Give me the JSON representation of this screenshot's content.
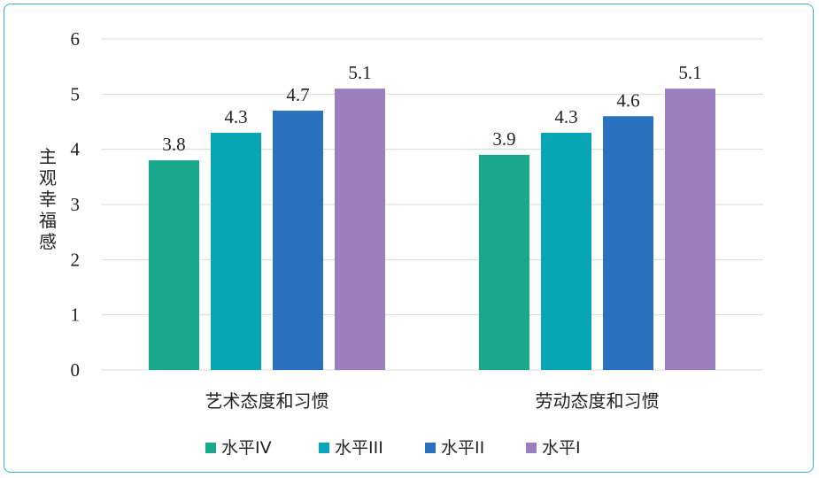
{
  "chart_data": {
    "type": "bar",
    "categories": [
      "艺术态度和习惯",
      "劳动态度和习惯"
    ],
    "series": [
      {
        "name": "水平IV",
        "values": [
          3.8,
          3.9
        ],
        "color": "#1aa88c"
      },
      {
        "name": "水平III",
        "values": [
          4.3,
          4.3
        ],
        "color": "#08a6b4"
      },
      {
        "name": "水平II",
        "values": [
          4.7,
          4.6
        ],
        "color": "#2a72c0"
      },
      {
        "name": "水平I",
        "values": [
          5.1,
          5.1
        ],
        "color": "#9b7fbd"
      }
    ],
    "data_labels": [
      [
        "3.8",
        "4.3",
        "4.7",
        "5.1"
      ],
      [
        "3.9",
        "4.3",
        "4.6",
        "5.1"
      ]
    ],
    "ylabel": "主观幸福感",
    "xlabel": "",
    "ylim": [
      0,
      6
    ],
    "yticks": [
      0,
      1,
      2,
      3,
      4,
      5,
      6
    ],
    "grid": true,
    "legend_position": "bottom"
  }
}
